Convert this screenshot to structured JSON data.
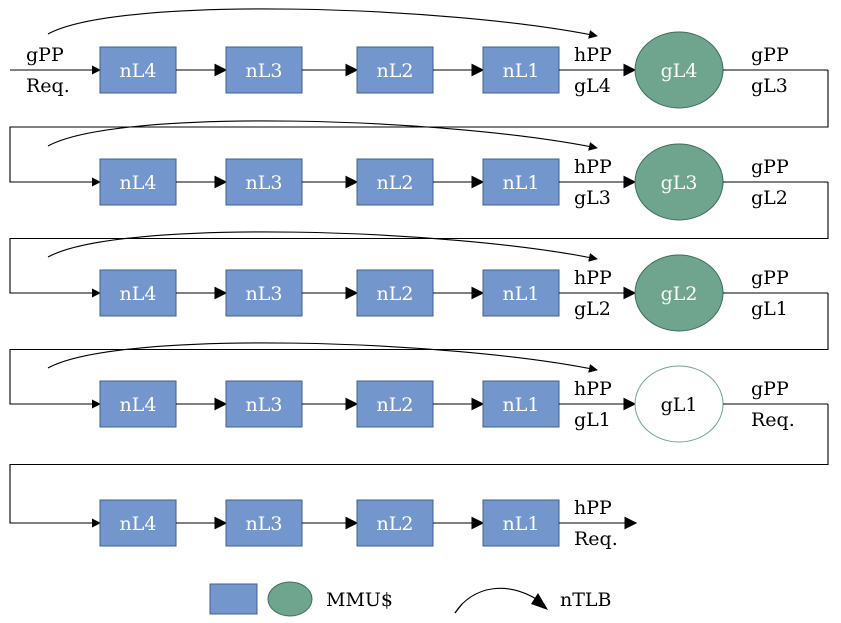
{
  "rows": [
    {
      "boxes": [
        "nL4",
        "nL3",
        "nL2",
        "nL1"
      ],
      "in_labels": [
        "gPP",
        "Req."
      ],
      "mid_labels": [
        "hPP",
        "gL4"
      ],
      "circle": {
        "label": "gL4",
        "filled": true
      },
      "out_labels": [
        "gPP",
        "gL3"
      ]
    },
    {
      "boxes": [
        "nL4",
        "nL3",
        "nL2",
        "nL1"
      ],
      "mid_labels": [
        "hPP",
        "gL3"
      ],
      "circle": {
        "label": "gL3",
        "filled": true
      },
      "out_labels": [
        "gPP",
        "gL2"
      ]
    },
    {
      "boxes": [
        "nL4",
        "nL3",
        "nL2",
        "nL1"
      ],
      "mid_labels": [
        "hPP",
        "gL2"
      ],
      "circle": {
        "label": "gL2",
        "filled": true
      },
      "out_labels": [
        "gPP",
        "gL1"
      ]
    },
    {
      "boxes": [
        "nL4",
        "nL3",
        "nL2",
        "nL1"
      ],
      "mid_labels": [
        "hPP",
        "gL1"
      ],
      "circle": {
        "label": "gL1",
        "filled": false
      },
      "out_labels": [
        "gPP",
        "Req."
      ]
    },
    {
      "boxes": [
        "nL4",
        "nL3",
        "nL2",
        "nL1"
      ],
      "mid_labels": [
        "hPP",
        "Req."
      ]
    }
  ],
  "legend": {
    "mmu_label": "MMU$",
    "ntlb_label": "nTLB"
  },
  "colors": {
    "box_fill": "#7397cc",
    "circle_fill": "#6fa58f"
  }
}
